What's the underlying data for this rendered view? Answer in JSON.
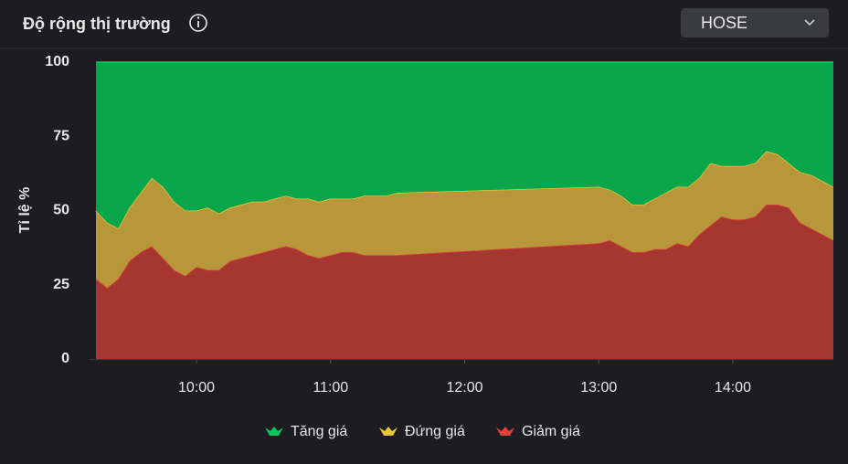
{
  "header": {
    "title": "Độ rộng thị trường",
    "exchange": "HOSE"
  },
  "chart_data": {
    "type": "stacked-area",
    "y_label": "Tỉ lệ %",
    "x": [
      555,
      560,
      565,
      570,
      575,
      580,
      585,
      590,
      595,
      600,
      605,
      610,
      615,
      620,
      625,
      630,
      635,
      640,
      645,
      650,
      655,
      660,
      665,
      670,
      675,
      680,
      685,
      690,
      780,
      785,
      790,
      795,
      800,
      805,
      810,
      815,
      820,
      825,
      830,
      835,
      840,
      845,
      850,
      855,
      860,
      865,
      870,
      875,
      880,
      885
    ],
    "xlim": [
      555,
      885
    ],
    "xticks": [
      {
        "value": 600,
        "label": "10:00"
      },
      {
        "value": 660,
        "label": "11:00"
      },
      {
        "value": 720,
        "label": "12:00"
      },
      {
        "value": 780,
        "label": "13:00"
      },
      {
        "value": 840,
        "label": "14:00"
      }
    ],
    "ylim": [
      0,
      100
    ],
    "yticks": [
      0,
      25,
      50,
      75,
      100
    ],
    "grid": false,
    "legend": "bottom",
    "series": [
      {
        "name": "Tăng giá",
        "color": "#07a64a",
        "line": "#0bc55a",
        "values": [
          50,
          54,
          56,
          49,
          44,
          39,
          42,
          47,
          50,
          50,
          49,
          51,
          49,
          48,
          47,
          47,
          46,
          45,
          46,
          46,
          47,
          46,
          46,
          46,
          45,
          45,
          45,
          44,
          42,
          43,
          45,
          48,
          48,
          46,
          44,
          42,
          42,
          39,
          34,
          35,
          35,
          35,
          34,
          30,
          31,
          34,
          37,
          38,
          40,
          42
        ]
      },
      {
        "name": "Đứng giá",
        "color": "#b8963a",
        "line": "#e8c53c",
        "values": [
          23,
          22,
          17,
          18,
          20,
          23,
          24,
          23,
          22,
          19,
          21,
          19,
          18,
          18,
          18,
          17,
          17,
          17,
          17,
          19,
          19,
          19,
          18,
          18,
          20,
          20,
          20,
          21,
          19,
          17,
          17,
          16,
          16,
          17,
          19,
          19,
          20,
          19,
          21,
          17,
          18,
          18,
          18,
          18,
          17,
          15,
          17,
          18,
          18,
          18
        ]
      },
      {
        "name": "Giảm giá",
        "color": "#a53630",
        "line": "#dc4238",
        "values": [
          27,
          24,
          27,
          33,
          36,
          38,
          34,
          30,
          28,
          31,
          30,
          30,
          33,
          34,
          35,
          36,
          37,
          38,
          37,
          35,
          34,
          35,
          36,
          36,
          35,
          35,
          35,
          35,
          39,
          40,
          38,
          36,
          36,
          37,
          37,
          39,
          38,
          42,
          45,
          48,
          47,
          47,
          48,
          52,
          52,
          51,
          46,
          44,
          42,
          40
        ]
      }
    ]
  }
}
